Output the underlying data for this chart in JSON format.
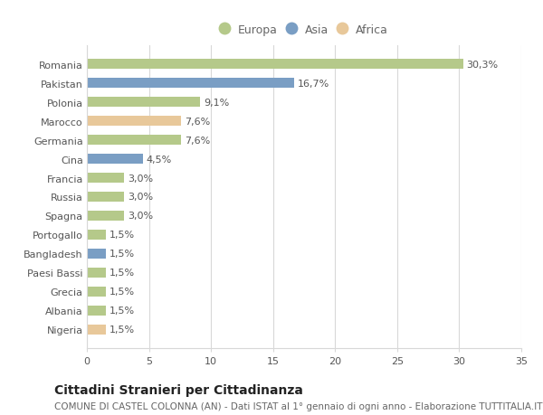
{
  "categories": [
    "Nigeria",
    "Albania",
    "Grecia",
    "Paesi Bassi",
    "Bangladesh",
    "Portogallo",
    "Spagna",
    "Russia",
    "Francia",
    "Cina",
    "Germania",
    "Marocco",
    "Polonia",
    "Pakistan",
    "Romania"
  ],
  "values": [
    1.5,
    1.5,
    1.5,
    1.5,
    1.5,
    1.5,
    3.0,
    3.0,
    3.0,
    4.5,
    7.6,
    7.6,
    9.1,
    16.7,
    30.3
  ],
  "colors": [
    "#e8c89a",
    "#b5c98a",
    "#b5c98a",
    "#b5c98a",
    "#7a9ec4",
    "#b5c98a",
    "#b5c98a",
    "#b5c98a",
    "#b5c98a",
    "#7a9ec4",
    "#b5c98a",
    "#e8c89a",
    "#b5c98a",
    "#7a9ec4",
    "#b5c98a"
  ],
  "labels": [
    "1,5%",
    "1,5%",
    "1,5%",
    "1,5%",
    "1,5%",
    "1,5%",
    "3,0%",
    "3,0%",
    "3,0%",
    "4,5%",
    "7,6%",
    "7,6%",
    "9,1%",
    "16,7%",
    "30,3%"
  ],
  "legend": [
    {
      "label": "Europa",
      "color": "#b5c98a"
    },
    {
      "label": "Asia",
      "color": "#7a9ec4"
    },
    {
      "label": "Africa",
      "color": "#e8c89a"
    }
  ],
  "title": "Cittadini Stranieri per Cittadinanza",
  "subtitle": "COMUNE DI CASTEL COLONNA (AN) - Dati ISTAT al 1° gennaio di ogni anno - Elaborazione TUTTITALIA.IT",
  "xlim": [
    0,
    35
  ],
  "xticks": [
    0,
    5,
    10,
    15,
    20,
    25,
    30,
    35
  ],
  "background_color": "#ffffff",
  "plot_bg_color": "#ffffff",
  "grid_color": "#d8d8d8",
  "bar_height": 0.55,
  "title_fontsize": 10,
  "subtitle_fontsize": 7.5,
  "label_fontsize": 8,
  "tick_fontsize": 8,
  "legend_fontsize": 9
}
